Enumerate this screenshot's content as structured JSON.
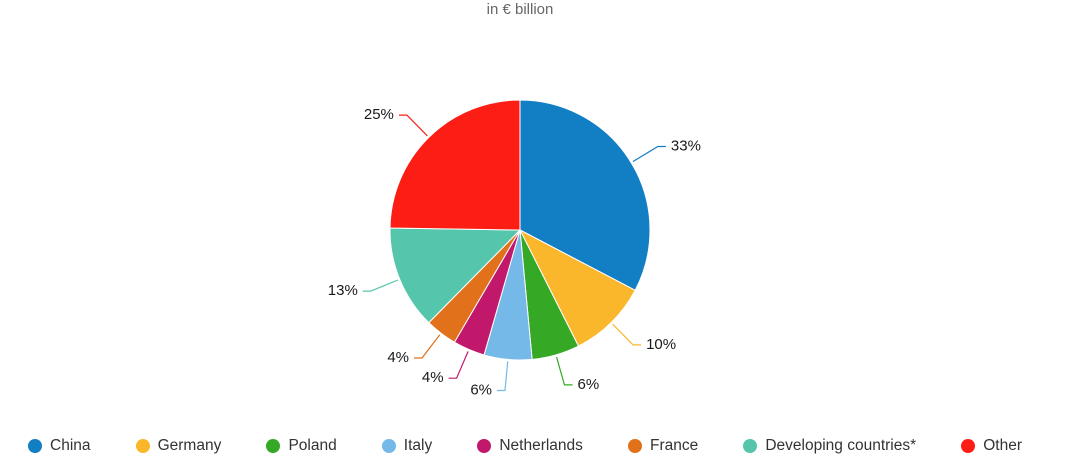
{
  "title": "in € billion",
  "chart_data": {
    "type": "pie",
    "title": "in € billion",
    "categories": [
      "China",
      "Germany",
      "Poland",
      "Italy",
      "Netherlands",
      "France",
      "Developing countries*",
      "Other"
    ],
    "values": [
      33,
      10,
      6,
      6,
      4,
      4,
      13,
      25
    ],
    "labels": [
      "33%",
      "10%",
      "6%",
      "6%",
      "4%",
      "4%",
      "13%",
      "25%"
    ],
    "colors": [
      "#127ec3",
      "#fbb72c",
      "#35a826",
      "#74b9e7",
      "#c2186b",
      "#e2711b",
      "#55c6ac",
      "#fc1e14"
    ],
    "start_angle_deg": 0,
    "direction": "clockwise",
    "legend_position": "bottom"
  }
}
